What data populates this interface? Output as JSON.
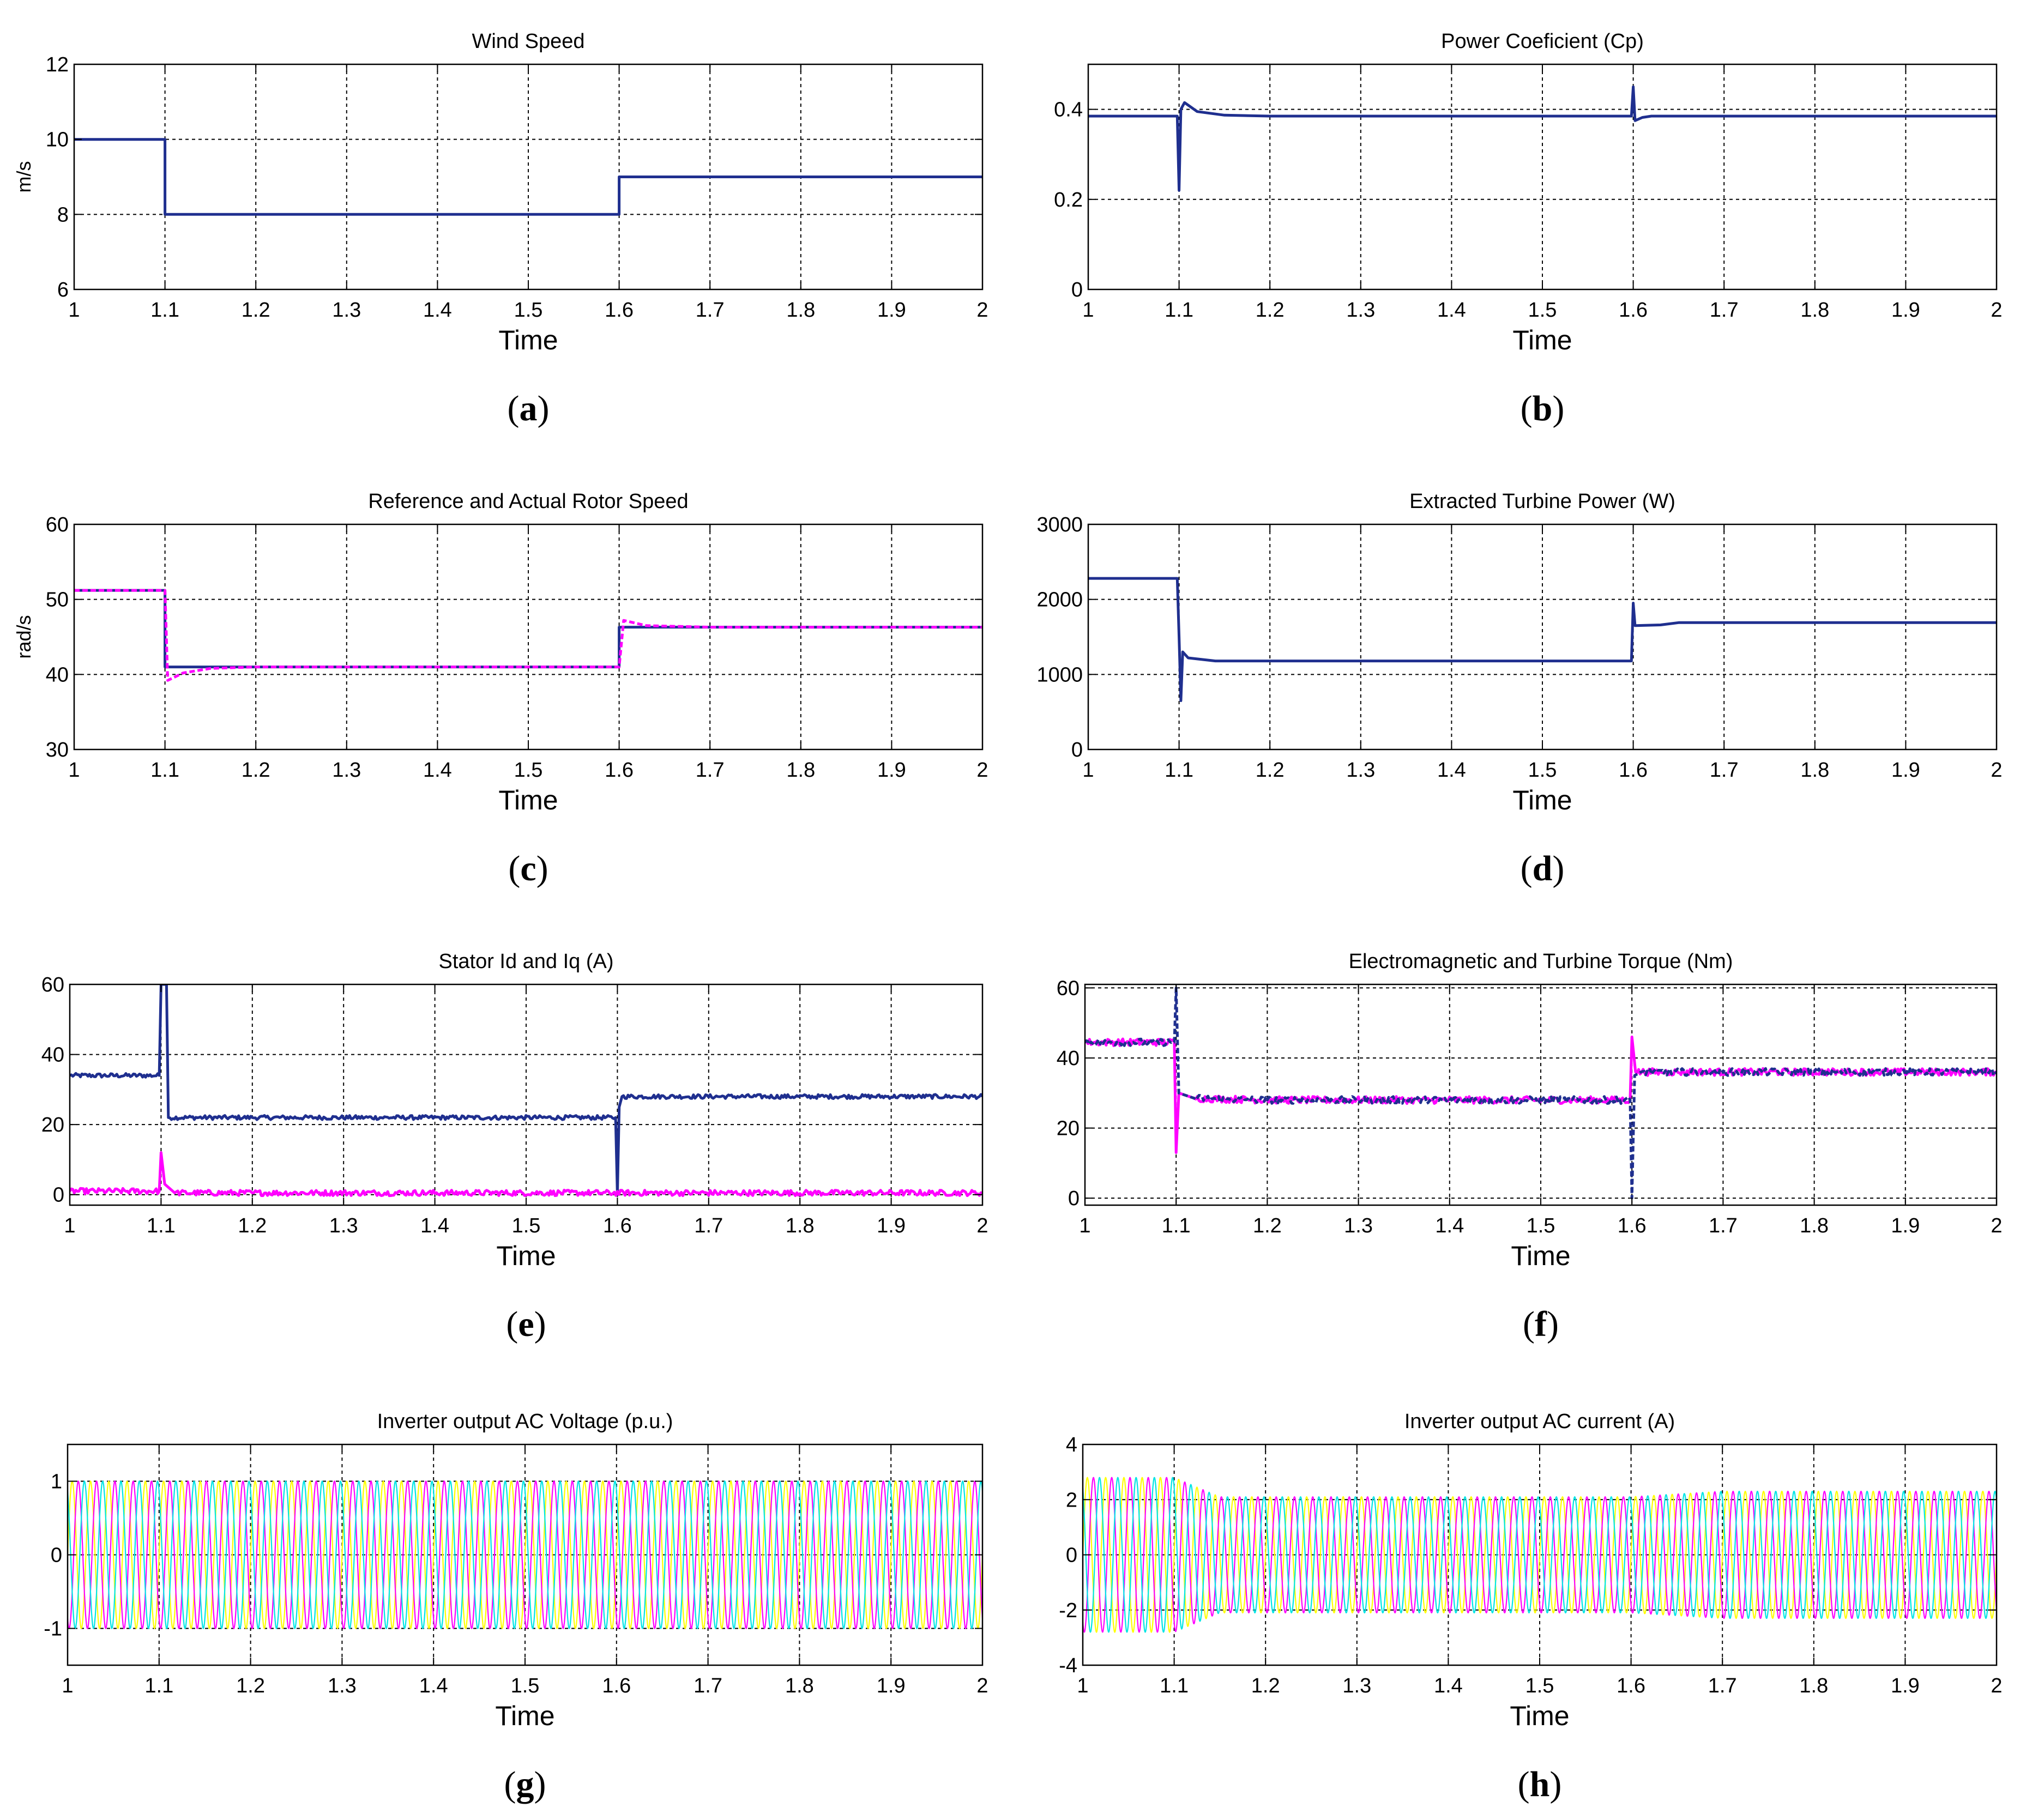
{
  "colors": {
    "blue": "#1f2f8f",
    "magenta": "#ff00ff",
    "yellow": "#ffff00",
    "cyan": "#00e5e5",
    "grid": "#000000"
  },
  "chart_data": [
    {
      "id": "a",
      "caption": "a",
      "title": "Wind Speed",
      "type": "line",
      "xlabel": "Time",
      "ylabel": "m/s",
      "xlim": [
        1,
        2
      ],
      "ylim": [
        6,
        12
      ],
      "xticks": [
        1,
        1.1,
        1.2,
        1.3,
        1.4,
        1.5,
        1.6,
        1.7,
        1.8,
        1.9,
        2
      ],
      "xtick_labels": [
        "1",
        "1.1",
        "1.2",
        "1.3",
        "1.4",
        "1.5",
        "1.6",
        "1.7",
        "1.8",
        "1.9",
        "2"
      ],
      "yticks": [
        6,
        8,
        10,
        12
      ],
      "ytick_labels": [
        "6",
        "8",
        "10",
        "12"
      ],
      "series": [
        {
          "name": "wind speed",
          "color": "#1f2f8f",
          "style": "solid",
          "points": [
            [
              1,
              10
            ],
            [
              1.1,
              10
            ],
            [
              1.1,
              8
            ],
            [
              1.6,
              8
            ],
            [
              1.6,
              9
            ],
            [
              2,
              9
            ]
          ]
        }
      ]
    },
    {
      "id": "b",
      "caption": "b",
      "title": "Power Coeficient (Cp)",
      "type": "line",
      "xlabel": "Time",
      "ylabel": "",
      "xlim": [
        1,
        2
      ],
      "ylim": [
        0,
        0.5
      ],
      "xticks": [
        1,
        1.1,
        1.2,
        1.3,
        1.4,
        1.5,
        1.6,
        1.7,
        1.8,
        1.9,
        2
      ],
      "xtick_labels": [
        "1",
        "1.1",
        "1.2",
        "1.3",
        "1.4",
        "1.5",
        "1.6",
        "1.7",
        "1.8",
        "1.9",
        "2"
      ],
      "yticks": [
        0,
        0.2,
        0.4
      ],
      "ytick_labels": [
        "0",
        "0.2",
        "0.4"
      ],
      "series": [
        {
          "name": "Cp",
          "color": "#1f2f8f",
          "style": "solid",
          "points": [
            [
              1,
              0.385
            ],
            [
              1.098,
              0.385
            ],
            [
              1.1,
              0.22
            ],
            [
              1.102,
              0.4
            ],
            [
              1.106,
              0.415
            ],
            [
              1.12,
              0.395
            ],
            [
              1.15,
              0.387
            ],
            [
              1.2,
              0.385
            ],
            [
              1.598,
              0.385
            ],
            [
              1.6,
              0.45
            ],
            [
              1.602,
              0.375
            ],
            [
              1.61,
              0.382
            ],
            [
              1.62,
              0.385
            ],
            [
              2,
              0.385
            ]
          ]
        }
      ]
    },
    {
      "id": "c",
      "caption": "c",
      "title": "Reference and Actual Rotor Speed",
      "type": "line",
      "xlabel": "Time",
      "ylabel": "rad/s",
      "xlim": [
        1,
        2
      ],
      "ylim": [
        30,
        60
      ],
      "xticks": [
        1,
        1.1,
        1.2,
        1.3,
        1.4,
        1.5,
        1.6,
        1.7,
        1.8,
        1.9,
        2
      ],
      "xtick_labels": [
        "1",
        "1.1",
        "1.2",
        "1.3",
        "1.4",
        "1.5",
        "1.6",
        "1.7",
        "1.8",
        "1.9",
        "2"
      ],
      "yticks": [
        30,
        40,
        50,
        60
      ],
      "ytick_labels": [
        "30",
        "40",
        "50",
        "60"
      ],
      "series": [
        {
          "name": "reference",
          "color": "#1f2f8f",
          "style": "solid",
          "points": [
            [
              1,
              51.2
            ],
            [
              1.1,
              51.2
            ],
            [
              1.1,
              41
            ],
            [
              1.6,
              41
            ],
            [
              1.6,
              46.3
            ],
            [
              2,
              46.3
            ]
          ]
        },
        {
          "name": "actual",
          "color": "#ff00ff",
          "style": "dashed",
          "points": [
            [
              1,
              51.2
            ],
            [
              1.1,
              51.2
            ],
            [
              1.103,
              39.2
            ],
            [
              1.12,
              40.2
            ],
            [
              1.15,
              40.8
            ],
            [
              1.2,
              41
            ],
            [
              1.6,
              41
            ],
            [
              1.605,
              47.2
            ],
            [
              1.63,
              46.5
            ],
            [
              1.7,
              46.3
            ],
            [
              2,
              46.3
            ]
          ]
        }
      ]
    },
    {
      "id": "d",
      "caption": "d",
      "title": "Extracted Turbine Power (W)",
      "type": "line",
      "xlabel": "Time",
      "ylabel": "",
      "xlim": [
        1,
        2
      ],
      "ylim": [
        0,
        3000
      ],
      "xticks": [
        1,
        1.1,
        1.2,
        1.3,
        1.4,
        1.5,
        1.6,
        1.7,
        1.8,
        1.9,
        2
      ],
      "xtick_labels": [
        "1",
        "1.1",
        "1.2",
        "1.3",
        "1.4",
        "1.5",
        "1.6",
        "1.7",
        "1.8",
        "1.9",
        "2"
      ],
      "yticks": [
        0,
        1000,
        2000,
        3000
      ],
      "ytick_labels": [
        "0",
        "1000",
        "2000",
        "3000"
      ],
      "series": [
        {
          "name": "power",
          "color": "#1f2f8f",
          "style": "solid",
          "points": [
            [
              1,
              2280
            ],
            [
              1.098,
              2280
            ],
            [
              1.1,
              1500
            ],
            [
              1.102,
              650
            ],
            [
              1.104,
              1300
            ],
            [
              1.11,
              1220
            ],
            [
              1.14,
              1180
            ],
            [
              1.2,
              1180
            ],
            [
              1.598,
              1180
            ],
            [
              1.6,
              1950
            ],
            [
              1.602,
              1650
            ],
            [
              1.63,
              1660
            ],
            [
              1.65,
              1690
            ],
            [
              2,
              1690
            ]
          ]
        }
      ]
    },
    {
      "id": "e",
      "caption": "e",
      "title": "Stator Id and Iq (A)",
      "type": "line",
      "xlabel": "Time",
      "ylabel": "",
      "xlim": [
        1,
        2
      ],
      "ylim": [
        -3,
        60
      ],
      "xticks": [
        1,
        1.1,
        1.2,
        1.3,
        1.4,
        1.5,
        1.6,
        1.7,
        1.8,
        1.9,
        2
      ],
      "xtick_labels": [
        "1",
        "1.1",
        "1.2",
        "1.3",
        "1.4",
        "1.5",
        "1.6",
        "1.7",
        "1.8",
        "1.9",
        "2"
      ],
      "yticks": [
        0,
        20,
        40,
        60
      ],
      "ytick_labels": [
        "0",
        "20",
        "40",
        "60"
      ],
      "series": [
        {
          "name": "Iq",
          "color": "#1f2f8f",
          "style": "solid",
          "noise": 0.6,
          "points": [
            [
              1,
              34
            ],
            [
              1.098,
              34
            ],
            [
              1.1,
              60
            ],
            [
              1.106,
              60
            ],
            [
              1.108,
              22
            ],
            [
              1.2,
              22
            ],
            [
              1.598,
              22
            ],
            [
              1.6,
              0
            ],
            [
              1.602,
              25
            ],
            [
              1.605,
              28
            ],
            [
              2,
              28
            ]
          ]
        },
        {
          "name": "Id",
          "color": "#ff00ff",
          "style": "solid",
          "noise": 0.8,
          "points": [
            [
              1,
              1
            ],
            [
              1.098,
              1
            ],
            [
              1.1,
              12
            ],
            [
              1.104,
              3
            ],
            [
              1.115,
              0.5
            ],
            [
              1.2,
              0.5
            ],
            [
              2,
              0.5
            ]
          ]
        }
      ]
    },
    {
      "id": "f",
      "caption": "f",
      "title": "Electromagnetic and Turbine Torque (Nm)",
      "type": "line",
      "xlabel": "Time",
      "ylabel": "",
      "xlim": [
        1,
        2
      ],
      "ylim": [
        -2,
        61
      ],
      "xticks": [
        1,
        1.1,
        1.2,
        1.3,
        1.4,
        1.5,
        1.6,
        1.7,
        1.8,
        1.9,
        2
      ],
      "xtick_labels": [
        "1",
        "1.1",
        "1.2",
        "1.3",
        "1.4",
        "1.5",
        "1.6",
        "1.7",
        "1.8",
        "1.9",
        "2"
      ],
      "yticks": [
        0,
        20,
        40,
        60
      ],
      "ytick_labels": [
        "0",
        "20",
        "40",
        "60"
      ],
      "series": [
        {
          "name": "electromagnetic torque",
          "color": "#ff00ff",
          "style": "solid",
          "noise": 1.0,
          "points": [
            [
              1,
              44.5
            ],
            [
              1.098,
              44.5
            ],
            [
              1.1,
              13
            ],
            [
              1.103,
              30
            ],
            [
              1.12,
              28.5
            ],
            [
              1.2,
              28
            ],
            [
              1.598,
              28
            ],
            [
              1.6,
              46
            ],
            [
              1.604,
              36
            ],
            [
              2,
              36
            ]
          ]
        },
        {
          "name": "turbine torque",
          "color": "#1f2f8f",
          "style": "dashed",
          "noise": 1.0,
          "points": [
            [
              1,
              44.5
            ],
            [
              1.098,
              44.5
            ],
            [
              1.1,
              60
            ],
            [
              1.103,
              30
            ],
            [
              1.12,
              28.5
            ],
            [
              1.2,
              28
            ],
            [
              1.598,
              28
            ],
            [
              1.6,
              0
            ],
            [
              1.603,
              35
            ],
            [
              1.61,
              36
            ],
            [
              2,
              36
            ]
          ]
        }
      ]
    },
    {
      "id": "g",
      "caption": "g",
      "title": "Inverter output AC Voltage (p.u.)",
      "type": "line",
      "xlabel": "Time",
      "ylabel": "",
      "xlim": [
        1,
        2
      ],
      "ylim": [
        -1.5,
        1.5
      ],
      "xticks": [
        1,
        1.1,
        1.2,
        1.3,
        1.4,
        1.5,
        1.6,
        1.7,
        1.8,
        1.9,
        2
      ],
      "xtick_labels": [
        "1",
        "1.1",
        "1.2",
        "1.3",
        "1.4",
        "1.5",
        "1.6",
        "1.7",
        "1.8",
        "1.9",
        "2"
      ],
      "yticks": [
        -1,
        0,
        1
      ],
      "ytick_labels": [
        "-1",
        "0",
        "1"
      ],
      "three_phase": {
        "frequency_hz": 50,
        "phase_colors": [
          "#ffff00",
          "#ff00ff",
          "#00e5e5"
        ],
        "amplitude_steps": [
          [
            1,
            1
          ],
          [
            2,
            1
          ]
        ]
      }
    },
    {
      "id": "h",
      "caption": "h",
      "title": "Inverter output AC current (A)",
      "type": "line",
      "xlabel": "Time",
      "ylabel": "",
      "xlim": [
        1,
        2
      ],
      "ylim": [
        -4,
        4
      ],
      "xticks": [
        1,
        1.1,
        1.2,
        1.3,
        1.4,
        1.5,
        1.6,
        1.7,
        1.8,
        1.9,
        2
      ],
      "xtick_labels": [
        "1",
        "1.1",
        "1.2",
        "1.3",
        "1.4",
        "1.5",
        "1.6",
        "1.7",
        "1.8",
        "1.9",
        "2"
      ],
      "yticks": [
        -4,
        -2,
        0,
        2,
        4
      ],
      "ytick_labels": [
        "-4",
        "-2",
        "0",
        "2",
        "4"
      ],
      "three_phase": {
        "frequency_hz": 50,
        "phase_colors": [
          "#ffff00",
          "#ff00ff",
          "#00e5e5"
        ],
        "amplitude_steps": [
          [
            1,
            2.8
          ],
          [
            1.1,
            2.8
          ],
          [
            1.15,
            2.1
          ],
          [
            1.6,
            2.1
          ],
          [
            1.7,
            2.3
          ],
          [
            2,
            2.3
          ]
        ]
      }
    }
  ]
}
